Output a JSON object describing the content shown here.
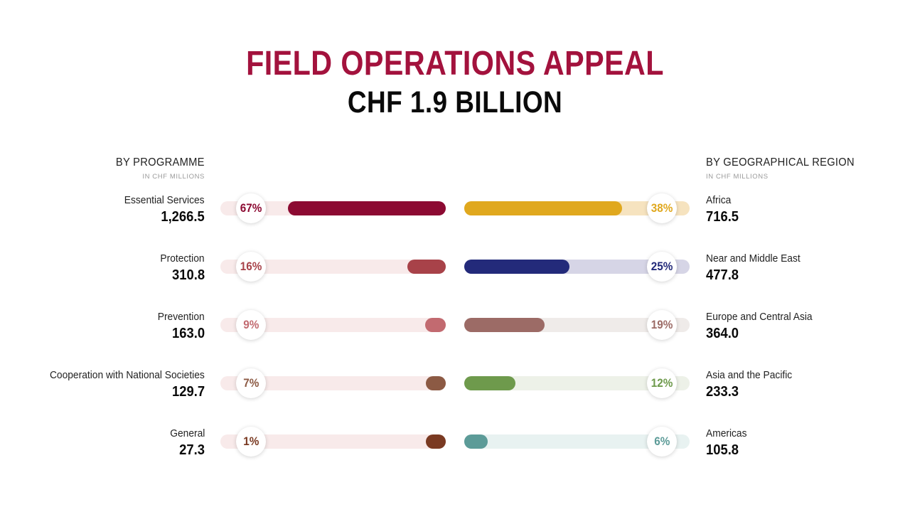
{
  "title": "FIELD OPERATIONS APPEAL",
  "subtitle": "CHF 1.9 BILLION",
  "left": {
    "heading": "BY PROGRAMME",
    "unit": "IN CHF MILLIONS"
  },
  "right": {
    "heading": "BY GEOGRAPHICAL REGION",
    "unit": "IN CHF MILLIONS"
  },
  "chart_data": [
    {
      "type": "bar",
      "title": "BY PROGRAMME",
      "unit": "IN CHF MILLIONS",
      "categories": [
        "Essential Services",
        "Protection",
        "Prevention",
        "Cooperation with National Societies",
        "General"
      ],
      "values": [
        1266.5,
        310.8,
        163.0,
        129.7,
        27.3
      ],
      "value_labels": [
        "1,266.5",
        "310.8",
        "163.0",
        "129.7",
        "27.3"
      ],
      "percents": [
        67,
        16,
        9,
        7,
        1
      ],
      "percent_labels": [
        "67%",
        "16%",
        "9%",
        "7%",
        "1%"
      ],
      "colors": [
        "#8c0a32",
        "#a84249",
        "#c26a70",
        "#8c5a44",
        "#7a3a22"
      ],
      "track_colors": [
        "#f8eaea",
        "#f8eaea",
        "#f8eaea",
        "#f8eaea",
        "#f8eaea"
      ]
    },
    {
      "type": "bar",
      "title": "BY GEOGRAPHICAL REGION",
      "unit": "IN CHF MILLIONS",
      "categories": [
        "Africa",
        "Near and Middle East",
        "Europe and Central Asia",
        "Asia and the Pacific",
        "Americas"
      ],
      "values": [
        716.5,
        477.8,
        364.0,
        233.3,
        105.8
      ],
      "value_labels": [
        "716.5",
        "477.8",
        "364.0",
        "233.3",
        "105.8"
      ],
      "percents": [
        38,
        25,
        19,
        12,
        6
      ],
      "percent_labels": [
        "38%",
        "25%",
        "19%",
        "12%",
        "6%"
      ],
      "colors": [
        "#e0a81e",
        "#232a7a",
        "#9c6b66",
        "#6e9a4c",
        "#5c9b98"
      ],
      "track_colors": [
        "#f6e3bf",
        "#d6d5e6",
        "#efebe9",
        "#edf1e8",
        "#e8f2f1"
      ]
    }
  ]
}
